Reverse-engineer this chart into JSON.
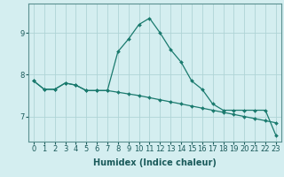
{
  "title": "",
  "xlabel": "Humidex (Indice chaleur)",
  "background_color": "#d4eef0",
  "grid_color": "#afd4d6",
  "line_color": "#1a7a6e",
  "x_values": [
    0,
    1,
    2,
    3,
    4,
    5,
    6,
    7,
    8,
    9,
    10,
    11,
    12,
    13,
    14,
    15,
    16,
    17,
    18,
    19,
    20,
    21,
    22,
    23
  ],
  "line1_y": [
    7.85,
    7.65,
    7.65,
    7.8,
    7.75,
    7.62,
    7.62,
    7.62,
    8.55,
    8.85,
    9.2,
    9.35,
    9.0,
    8.6,
    8.3,
    7.85,
    7.65,
    7.3,
    7.15,
    7.15,
    7.15,
    7.15,
    7.15,
    6.55
  ],
  "line2_y": [
    7.85,
    7.65,
    7.65,
    7.8,
    7.75,
    7.62,
    7.62,
    7.62,
    7.58,
    7.54,
    7.5,
    7.45,
    7.4,
    7.35,
    7.3,
    7.25,
    7.2,
    7.15,
    7.1,
    7.05,
    7.0,
    6.95,
    6.9,
    6.85
  ],
  "yticks": [
    7,
    8,
    9
  ],
  "xtick_labels": [
    "0",
    "1",
    "2",
    "3",
    "4",
    "5",
    "6",
    "7",
    "8",
    "9",
    "10",
    "11",
    "12",
    "13",
    "14",
    "15",
    "16",
    "17",
    "18",
    "19",
    "20",
    "21",
    "22",
    "23"
  ],
  "ylim": [
    6.4,
    9.7
  ],
  "xlim": [
    -0.5,
    23.5
  ],
  "xlabel_fontsize": 7,
  "tick_fontsize": 6
}
